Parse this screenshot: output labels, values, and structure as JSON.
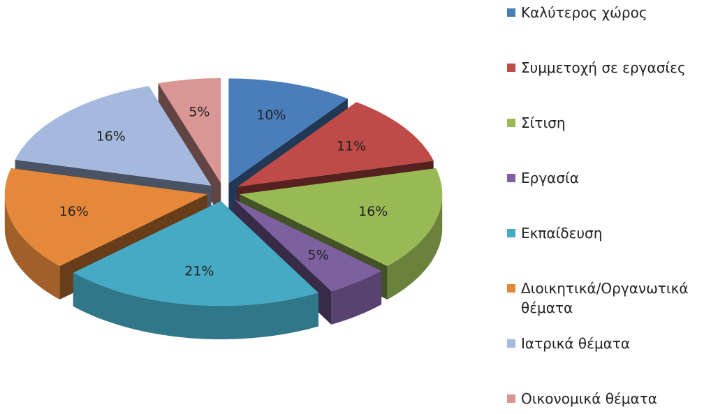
{
  "chart_data": {
    "type": "pie3d",
    "categories": [
      "Καλύτερος χώρος",
      "Συμμετοχή σε εργασίες",
      "Σίτιση",
      "Εργασία",
      "Εκπαίδευση",
      "Διοικητικά/Οργανωτικά θέματα",
      "Ιατρικά θέματα",
      "Οικονομικά θέματα"
    ],
    "values": [
      10,
      11,
      16,
      5,
      21,
      16,
      16,
      5
    ],
    "value_labels": [
      "10%",
      "11%",
      "16%",
      "5%",
      "21%",
      "16%",
      "16%",
      "5%"
    ],
    "colors": [
      "#4a7ebb",
      "#be4b48",
      "#98b954",
      "#7d60a0",
      "#46aac5",
      "#e6883a",
      "#a5b8dd",
      "#d99694"
    ],
    "legend": "right"
  }
}
